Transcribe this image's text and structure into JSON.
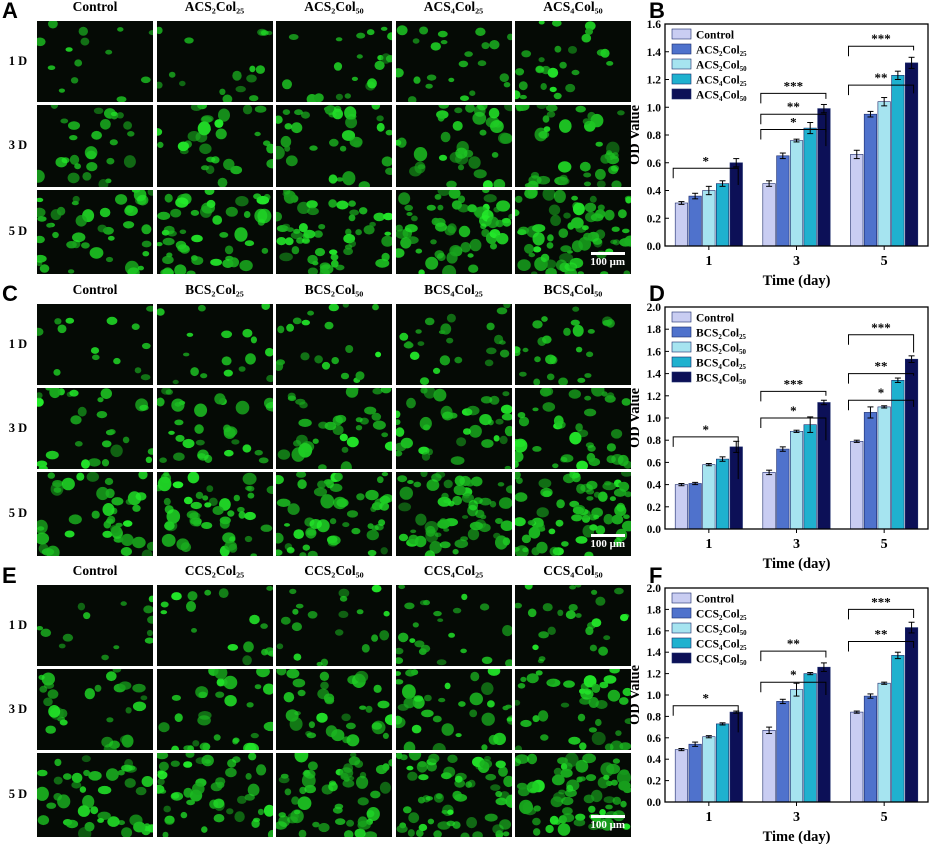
{
  "panels": [
    {
      "micro_letter": "A",
      "chart_letter": "B",
      "columns": [
        "Control",
        "ACS₂Col₂₅",
        "ACS₂Col₅₀",
        "ACS₄Col₂₅",
        "ACS₄Col₅₀"
      ],
      "rows": [
        "1 D",
        "3 D",
        "5 D"
      ],
      "scale_label": "100 μm"
    },
    {
      "micro_letter": "C",
      "chart_letter": "D",
      "columns": [
        "Control",
        "BCS₂Col₂₅",
        "BCS₂Col₅₀",
        "BCS₄Col₂₅",
        "BCS₄Col₅₀"
      ],
      "rows": [
        "1 D",
        "3 D",
        "5 D"
      ],
      "scale_label": "100 μm"
    },
    {
      "micro_letter": "E",
      "chart_letter": "F",
      "columns": [
        "Control",
        "CCS₂Col₂₅",
        "CCS₂Col₅₀",
        "CCS₄Col₂₅",
        "CCS₄Col₅₀"
      ],
      "rows": [
        "1 D",
        "3 D",
        "5 D"
      ],
      "scale_label": "100 μm"
    }
  ],
  "colors": {
    "series": [
      "#c9cdf2",
      "#4f72cc",
      "#a6e4f0",
      "#1fb1cf",
      "#0c1057"
    ],
    "cell": "#22d62a",
    "background": "#050a05"
  },
  "chart_data": [
    {
      "type": "bar",
      "xlabel": "Time (day)",
      "ylabel": "OD Value",
      "categories": [
        "1",
        "3",
        "5"
      ],
      "ylim": [
        0,
        1.6
      ],
      "yticks": [
        "0.0",
        "0.2",
        "0.4",
        "0.6",
        "0.8",
        "1.0",
        "1.2",
        "1.4",
        "1.6"
      ],
      "series": [
        {
          "name": "Control",
          "values": [
            0.31,
            0.45,
            0.66
          ],
          "errors": [
            0.01,
            0.02,
            0.03
          ]
        },
        {
          "name": "ACS₂Col₂₅",
          "values": [
            0.36,
            0.65,
            0.95
          ],
          "errors": [
            0.02,
            0.02,
            0.02
          ]
        },
        {
          "name": "ACS₂Col₅₀",
          "values": [
            0.4,
            0.76,
            1.04
          ],
          "errors": [
            0.03,
            0.01,
            0.03
          ]
        },
        {
          "name": "ACS₄Col₂₅",
          "values": [
            0.45,
            0.85,
            1.23
          ],
          "errors": [
            0.02,
            0.04,
            0.03
          ]
        },
        {
          "name": "ACS₄Col₅₀",
          "values": [
            0.6,
            0.99,
            1.32
          ],
          "errors": [
            0.03,
            0.03,
            0.04
          ]
        }
      ],
      "significance": [
        {
          "group": 0,
          "levels": [
            0.56,
            0.44
          ],
          "label": "*"
        },
        {
          "group": 1,
          "levels": [
            0.84,
            0.72
          ],
          "label": "*"
        },
        {
          "group": 1,
          "levels": [
            0.95,
            0.82
          ],
          "label": "**"
        },
        {
          "group": 1,
          "levels": [
            1.1,
            1.06
          ],
          "label": "***"
        },
        {
          "group": 2,
          "levels": [
            1.16,
            1.1
          ],
          "label": "**"
        },
        {
          "group": 2,
          "levels": [
            1.44,
            1.41
          ],
          "label": "***"
        }
      ]
    },
    {
      "type": "bar",
      "xlabel": "Time (day)",
      "ylabel": "OD Value",
      "categories": [
        "1",
        "3",
        "5"
      ],
      "ylim": [
        0,
        2.0
      ],
      "yticks": [
        "0.0",
        "0.2",
        "0.4",
        "0.6",
        "0.8",
        "1.0",
        "1.2",
        "1.4",
        "1.6",
        "1.8",
        "2.0"
      ],
      "series": [
        {
          "name": "Control",
          "values": [
            0.4,
            0.51,
            0.79
          ],
          "errors": [
            0.01,
            0.02,
            0.01
          ]
        },
        {
          "name": "BCS₂Col₂₅",
          "values": [
            0.41,
            0.72,
            1.05
          ],
          "errors": [
            0.01,
            0.02,
            0.05
          ]
        },
        {
          "name": "BCS₂Col₅₀",
          "values": [
            0.58,
            0.88,
            1.1
          ],
          "errors": [
            0.01,
            0.01,
            0.01
          ]
        },
        {
          "name": "BCS₄Col₂₅",
          "values": [
            0.63,
            0.94,
            1.34
          ],
          "errors": [
            0.02,
            0.07,
            0.02
          ]
        },
        {
          "name": "BCS₄Col₅₀",
          "values": [
            0.74,
            1.14,
            1.53
          ],
          "errors": [
            0.05,
            0.02,
            0.03
          ]
        }
      ],
      "significance": [
        {
          "group": 0,
          "levels": [
            0.83,
            0.45
          ],
          "label": "*"
        },
        {
          "group": 1,
          "levels": [
            1.0,
            0.8
          ],
          "label": "*"
        },
        {
          "group": 1,
          "levels": [
            1.24,
            1.2
          ],
          "label": "***"
        },
        {
          "group": 2,
          "levels": [
            1.16,
            1.1
          ],
          "label": "*"
        },
        {
          "group": 2,
          "levels": [
            1.4,
            1.38
          ],
          "label": "**"
        },
        {
          "group": 2,
          "levels": [
            1.75,
            1.59
          ],
          "label": "***"
        }
      ]
    },
    {
      "type": "bar",
      "xlabel": "Time (day)",
      "ylabel": "OD Value",
      "categories": [
        "1",
        "3",
        "5"
      ],
      "ylim": [
        0,
        2.0
      ],
      "yticks": [
        "0.0",
        "0.2",
        "0.4",
        "0.6",
        "0.8",
        "1.0",
        "1.2",
        "1.4",
        "1.6",
        "1.8",
        "2.0"
      ],
      "series": [
        {
          "name": "Control",
          "values": [
            0.49,
            0.67,
            0.84
          ],
          "errors": [
            0.01,
            0.03,
            0.01
          ]
        },
        {
          "name": "CCS₂Col₂₅",
          "values": [
            0.54,
            0.94,
            0.99
          ],
          "errors": [
            0.02,
            0.02,
            0.02
          ]
        },
        {
          "name": "CCS₂Col₅₀",
          "values": [
            0.61,
            1.05,
            1.11
          ],
          "errors": [
            0.01,
            0.06,
            0.01
          ]
        },
        {
          "name": "CCS₄Col₂₅",
          "values": [
            0.73,
            1.2,
            1.37
          ],
          "errors": [
            0.01,
            0.01,
            0.03
          ]
        },
        {
          "name": "CCS₄Col₅₀",
          "values": [
            0.84,
            1.26,
            1.63
          ],
          "errors": [
            0.01,
            0.04,
            0.05
          ]
        }
      ],
      "significance": [
        {
          "group": 0,
          "levels": [
            0.9,
            0.65
          ],
          "label": "*"
        },
        {
          "group": 1,
          "levels": [
            1.12,
            1.0
          ],
          "label": "*"
        },
        {
          "group": 1,
          "levels": [
            1.41,
            1.35
          ],
          "label": "**"
        },
        {
          "group": 2,
          "levels": [
            1.5,
            1.44
          ],
          "label": "**"
        },
        {
          "group": 2,
          "levels": [
            1.8,
            1.72
          ],
          "label": "***"
        }
      ]
    }
  ]
}
